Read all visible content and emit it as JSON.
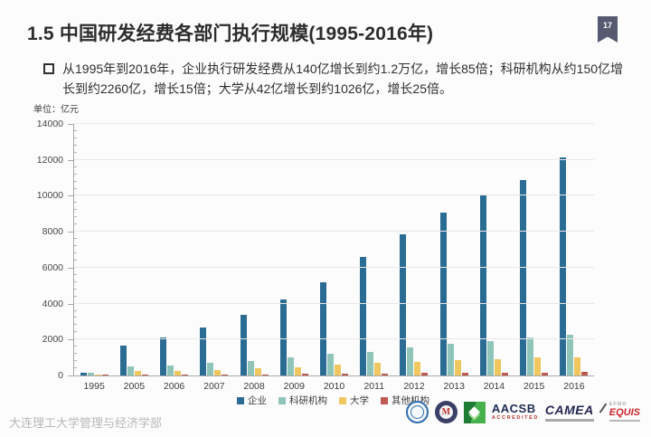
{
  "slide": {
    "page_number": "17",
    "title": "1.5  中国研发经费各部门执行规模(1995-2016年)",
    "bullet_text": "从1995年到2016年，企业执行研发经费从140亿增长到约1.2万亿，增长85倍；科研机构从约150亿增长到约2260亿，增长15倍；大学从42亿增长到约1026亿，增长25倍。",
    "footer": "大连理工大学管理与经济学部",
    "badge_color": "#555a70"
  },
  "chart_data": {
    "type": "bar",
    "title": "",
    "ylabel": "单位：亿元",
    "xlabel": "",
    "categories": [
      "1995",
      "2005",
      "2006",
      "2007",
      "2008",
      "2009",
      "2010",
      "2011",
      "2012",
      "2013",
      "2014",
      "2015",
      "2016"
    ],
    "series": [
      {
        "name": "企业",
        "color": "#2b6c94",
        "values": [
          140,
          1674,
          2134,
          2681,
          3382,
          4249,
          5186,
          6579,
          7842,
          9076,
          10060,
          10881,
          12144
        ]
      },
      {
        "name": "科研机构",
        "color": "#8fc4b9",
        "values": [
          150,
          513,
          567,
          687,
          811,
          996,
          1186,
          1307,
          1548,
          1781,
          1926,
          2136,
          2260
        ]
      },
      {
        "name": "大学",
        "color": "#f0c75f",
        "values": [
          42,
          242,
          277,
          315,
          390,
          468,
          597,
          688,
          781,
          857,
          898,
          999,
          1026
        ]
      },
      {
        "name": "其他机构",
        "color": "#c05a50",
        "values": [
          18,
          21,
          25,
          27,
          33,
          89,
          100,
          113,
          127,
          133,
          134,
          146,
          200
        ]
      }
    ],
    "ylim": [
      0,
      14000
    ],
    "ytick_step": 2000,
    "ytick_minor_step": 400,
    "grid": true,
    "legend_position": "bottom"
  },
  "logos": {
    "aacsb": "AACSB",
    "aacsb_sub": "ACCREDITED",
    "camea": "CAMEA",
    "efmd": "EFMD",
    "equis": "EQUIS"
  }
}
